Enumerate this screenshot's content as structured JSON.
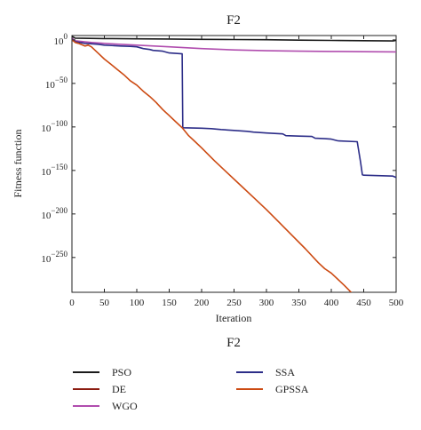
{
  "chart_data": {
    "type": "line",
    "title": "F2",
    "caption": "F2",
    "xlabel": "Iteration",
    "ylabel": "Fitness function",
    "xlim": [
      0,
      500
    ],
    "ylog_exponent_lim": [
      -290,
      5
    ],
    "x_ticks": [
      0,
      50,
      100,
      150,
      200,
      250,
      300,
      350,
      400,
      450,
      500
    ],
    "x_tick_labels": [
      "0",
      "50",
      "100",
      "150",
      "200",
      "250",
      "300",
      "350",
      "400",
      "450",
      "500"
    ],
    "y_tick_exponents": [
      0,
      -50,
      -100,
      -150,
      -200,
      -250
    ],
    "y_tick_base": "10",
    "y_tick_exps_text": [
      "0",
      "−50",
      "−100",
      "−150",
      "−200",
      "−250"
    ],
    "grid": false,
    "legend_position": "below",
    "series": [
      {
        "name": "PSO",
        "color": "#1a1a1a",
        "x": [
          0,
          5,
          50,
          100,
          150,
          200,
          250,
          300,
          350,
          400,
          450,
          495,
          500
        ],
        "log10_y": [
          4,
          2,
          1.5,
          1.2,
          1,
          0.6,
          0.4,
          0.2,
          -0.3,
          -0.6,
          -0.9,
          -1.2,
          -0.5
        ]
      },
      {
        "name": "DE",
        "color": "#8b1c10",
        "x": [
          0,
          500
        ],
        "log10_y": [
          20,
          20
        ]
      },
      {
        "name": "WGO",
        "color": "#b04cae",
        "x": [
          0,
          5,
          30,
          60,
          100,
          150,
          200,
          250,
          300,
          350,
          400,
          450,
          500
        ],
        "log10_y": [
          2,
          -1,
          -3,
          -4.5,
          -6,
          -8,
          -10,
          -11.5,
          -12.5,
          -13,
          -13.3,
          -13.6,
          -13.8
        ]
      },
      {
        "name": "SSA",
        "color": "#2c2d88",
        "x": [
          0,
          5,
          20,
          40,
          50,
          75,
          90,
          100,
          110,
          120,
          125,
          140,
          150,
          160,
          170,
          171,
          200,
          215,
          230,
          250,
          270,
          280,
          300,
          325,
          330,
          350,
          370,
          375,
          390,
          400,
          410,
          440,
          445,
          448,
          450,
          495,
          500
        ],
        "log10_y": [
          0,
          -2,
          -4,
          -5,
          -6,
          -7,
          -7.5,
          -8,
          -10,
          -11,
          -12,
          -13,
          -15,
          -15.5,
          -16,
          -101,
          -101.5,
          -102,
          -103,
          -104,
          -105,
          -106,
          -107,
          -108,
          -110,
          -110.5,
          -111,
          -113,
          -113.5,
          -114,
          -116,
          -117,
          -140,
          -155,
          -155.5,
          -156.5,
          -158
        ]
      },
      {
        "name": "GPSSA",
        "color": "#cc4a12",
        "x": [
          0,
          5,
          10,
          20,
          25,
          30,
          40,
          50,
          60,
          70,
          80,
          90,
          100,
          110,
          120,
          130,
          140,
          150,
          160,
          170,
          180,
          190,
          200,
          220,
          240,
          260,
          280,
          300,
          320,
          340,
          360,
          380,
          390,
          400,
          420,
          440,
          455
        ],
        "log10_y": [
          0,
          -3,
          -4,
          -7,
          -6,
          -8,
          -15,
          -22,
          -28,
          -34,
          -40,
          -47,
          -52,
          -59,
          -65,
          -72,
          -80,
          -87,
          -94,
          -101,
          -110,
          -117,
          -124,
          -139,
          -153,
          -167,
          -181,
          -195,
          -210,
          -225,
          -240,
          -256,
          -263,
          -268,
          -282,
          -297,
          -310
        ]
      }
    ]
  }
}
